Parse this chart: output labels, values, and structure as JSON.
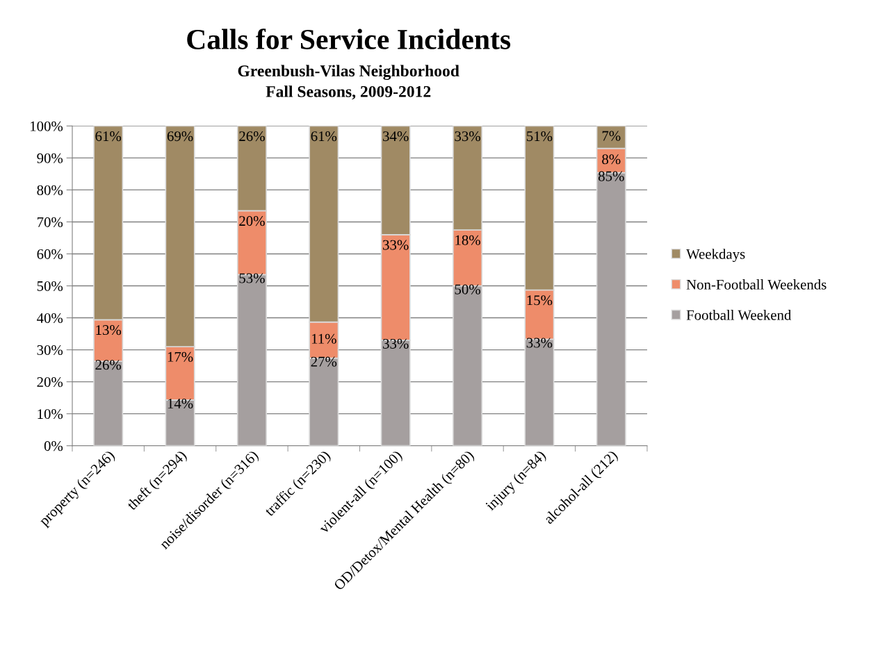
{
  "chart_data": {
    "type": "bar",
    "stacked": true,
    "title": "Calls for Service Incidents",
    "subtitle": "Greenbush-Vilas Neighborhood\nFall Seasons, 2009-2012",
    "categories": [
      "property (n=246)",
      "theft (n=294)",
      "noise/disorder (n=316)",
      "traffic (n=230)",
      "violent-all (n=100)",
      "OD/Detox/Mental Health (n=80)",
      "injury (n=84)",
      "alcohol-all (212)"
    ],
    "series": [
      {
        "name": "Football Weekend",
        "color": "#a59f9f",
        "values": [
          26.4,
          14.3,
          53.5,
          27.4,
          33,
          50,
          33.3,
          85.4
        ],
        "value_labels": [
          "26%",
          "14%",
          "53%",
          "27%",
          "33%",
          "50%",
          "33%",
          "85%"
        ]
      },
      {
        "name": "Non-Football Weekends",
        "color": "#ee8c6a",
        "values": [
          13.0,
          16.7,
          20.0,
          11.3,
          33,
          17.5,
          15.4,
          7.6
        ],
        "value_labels": [
          "13%",
          "17%",
          "20%",
          "11%",
          "33%",
          "18%",
          "15%",
          "8%"
        ]
      },
      {
        "name": "Weekdays",
        "color": "#a08a64",
        "values": [
          60.6,
          69.0,
          26.5,
          61.3,
          34,
          32.5,
          51.3,
          7.0
        ],
        "value_labels": [
          "61%",
          "69%",
          "26%",
          "61%",
          "34%",
          "33%",
          "51%",
          "7%"
        ]
      }
    ],
    "ylim": [
      0,
      100
    ],
    "yticks": [
      {
        "value": 0,
        "label": "0%"
      },
      {
        "value": 10,
        "label": "10%"
      },
      {
        "value": 20,
        "label": "20%"
      },
      {
        "value": 30,
        "label": "30%"
      },
      {
        "value": 40,
        "label": "40%"
      },
      {
        "value": 50,
        "label": "50%"
      },
      {
        "value": 60,
        "label": "60%"
      },
      {
        "value": 70,
        "label": "70%"
      },
      {
        "value": 80,
        "label": "80%"
      },
      {
        "value": 90,
        "label": "90%"
      },
      {
        "value": 100,
        "label": "100%"
      }
    ],
    "grid": "y",
    "legend": "right"
  }
}
